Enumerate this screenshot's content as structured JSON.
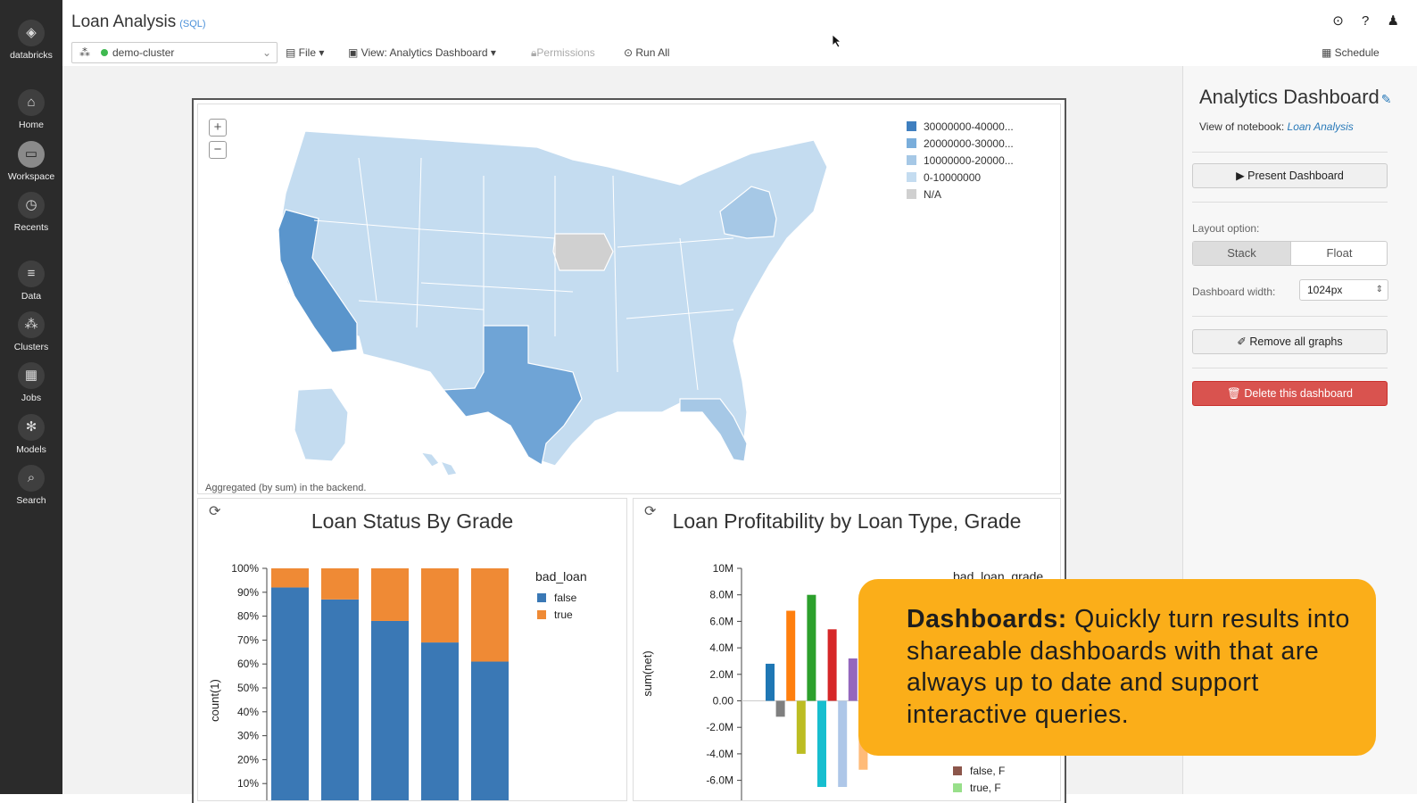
{
  "sidebar": {
    "brand": "databricks",
    "items": [
      {
        "label": "Home",
        "icon": "home-icon",
        "glyph": "⌂"
      },
      {
        "label": "Workspace",
        "icon": "folder-icon",
        "glyph": "▭"
      },
      {
        "label": "Recents",
        "icon": "clock-icon",
        "glyph": "◷"
      },
      {
        "label": "Data",
        "icon": "database-icon",
        "glyph": "≡"
      },
      {
        "label": "Clusters",
        "icon": "clusters-icon",
        "glyph": "⁂"
      },
      {
        "label": "Jobs",
        "icon": "calendar-icon",
        "glyph": "▦"
      },
      {
        "label": "Models",
        "icon": "models-icon",
        "glyph": "✻"
      },
      {
        "label": "Search",
        "icon": "search-icon",
        "glyph": "⌕"
      }
    ],
    "active": "Workspace"
  },
  "header": {
    "title": "Loan Analysis",
    "language": "(SQL)",
    "cluster": "demo-cluster",
    "file": "File",
    "view": "View: Analytics Dashboard",
    "permissions": "Permissions",
    "run_all": "Run All",
    "schedule": "Schedule"
  },
  "map": {
    "legend": [
      {
        "label": "30000000-40000...",
        "color": "#3f7fbf"
      },
      {
        "label": "20000000-30000...",
        "color": "#7aaedb"
      },
      {
        "label": "10000000-20000...",
        "color": "#a6c8e6"
      },
      {
        "label": "0-10000000",
        "color": "#c4dcf0"
      },
      {
        "label": "N/A",
        "color": "#d0d0d0"
      }
    ],
    "zoom_in": "+",
    "zoom_out": "−",
    "caption": "Aggregated (by sum) in the backend."
  },
  "chart_data": [
    {
      "type": "bar",
      "stacked": true,
      "title": "Loan Status By Grade",
      "ylabel": "count(1)",
      "yticks": [
        "100%",
        "90%",
        "80%",
        "70%",
        "60%",
        "50%",
        "40%",
        "30%",
        "20%",
        "10%"
      ],
      "legend_title": "bad_loan",
      "series": [
        {
          "name": "false",
          "color": "#3a78b5",
          "values": [
            0.92,
            0.87,
            0.78,
            0.69,
            0.61
          ]
        },
        {
          "name": "true",
          "color": "#ef8a35",
          "values": [
            0.08,
            0.13,
            0.22,
            0.31,
            0.39
          ]
        }
      ]
    },
    {
      "type": "bar",
      "title": "Loan Profitability by Loan Type, Grade",
      "ylabel": "sum(net)",
      "yticks": [
        "10M",
        "8.0M",
        "6.0M",
        "4.0M",
        "2.0M",
        "0.00",
        "-2.0M",
        "-4.0M",
        "-6.0M"
      ],
      "ylim": [
        -6000000,
        10000000
      ],
      "legend_title": "bad_loan_grade",
      "legend_visible": [
        {
          "name": "false, F",
          "color": "#8c564b"
        },
        {
          "name": "true, F",
          "color": "#98df8a"
        }
      ],
      "bars": [
        {
          "value": 2800000,
          "color": "#1f77b4"
        },
        {
          "value": -1200000,
          "color": "#7f7f7f"
        },
        {
          "value": 6800000,
          "color": "#ff7f0e"
        },
        {
          "value": -4000000,
          "color": "#bcbd22"
        },
        {
          "value": 8000000,
          "color": "#2ca02c"
        },
        {
          "value": -6500000,
          "color": "#17becf"
        },
        {
          "value": 5400000,
          "color": "#d62728"
        },
        {
          "value": -6500000,
          "color": "#aec7e8"
        },
        {
          "value": 3200000,
          "color": "#9467bd"
        },
        {
          "value": -5200000,
          "color": "#ffbb78"
        }
      ]
    }
  ],
  "right_panel": {
    "title": "Analytics Dashboard",
    "view_of": "View of notebook:",
    "notebook_link": "Loan Analysis",
    "present": "▶ Present Dashboard",
    "layout_label": "Layout option:",
    "layout_stack": "Stack",
    "layout_float": "Float",
    "width_label": "Dashboard width:",
    "width_value": "1024px",
    "remove_graphs": "Remove all graphs",
    "delete": "Delete this dashboard"
  },
  "callout": {
    "heading": "Dashboards:",
    "text": "Quickly turn results into shareable dashboards with  that are always up to date and support interactive queries."
  }
}
